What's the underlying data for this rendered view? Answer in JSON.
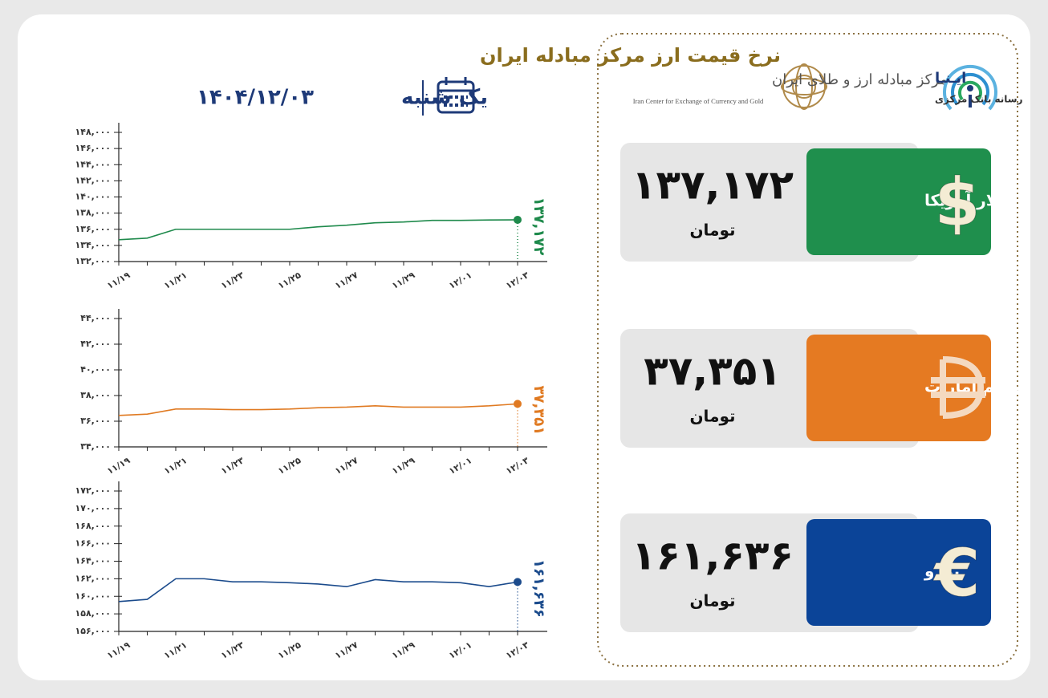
{
  "header": {
    "title": "نرخ قیمت ارز مرکز مبادله ایران",
    "day": "یک شنبه",
    "date": "۱۴۰۴/۱۲/۰۳"
  },
  "logos": {
    "center_fa": "مرکز مبادله ارز و طلای ایران",
    "center_en": "Iran Center for Exchange of Currency and Gold",
    "ina": "ایـنـا",
    "ina_sub": "رسانه بانک مرکزی"
  },
  "cards": [
    {
      "name": "دلار آمریکا",
      "value": "۱۳۷,۱۷۲",
      "unit": "تومان",
      "symbol": "$"
    },
    {
      "name": "درهم امارات",
      "value": "۳۷,۳۵۱",
      "unit": "تومان"
    },
    {
      "name": "یورو",
      "value": "۱۶۱,۶۳۶",
      "unit": "تومان",
      "symbol": "€"
    }
  ],
  "chart_data": [
    {
      "type": "line",
      "color": "#1f8a4c",
      "categories": [
        "۱۱/۱۹",
        null,
        "۱۱/۲۱",
        null,
        "۱۱/۲۳",
        null,
        "۱۱/۲۵",
        null,
        "۱۱/۲۷",
        null,
        "۱۱/۲۹",
        null,
        "۱۲/۰۱",
        null,
        "۱۲/۰۳"
      ],
      "values": [
        134700,
        134900,
        136000,
        136000,
        136000,
        136000,
        136000,
        136300,
        136500,
        136800,
        136900,
        137100,
        137100,
        137150,
        137172
      ],
      "value_labels": [
        null,
        null,
        null,
        null,
        null,
        null,
        null,
        null,
        null,
        null,
        null,
        null,
        null,
        null,
        "۱۳۷,۱۷۲"
      ],
      "ylim": [
        132000,
        148000
      ],
      "yticks": [
        {
          "value": 132000,
          "label": "۱۳۲,۰۰۰"
        },
        {
          "value": 134000,
          "label": "۱۳۴,۰۰۰"
        },
        {
          "value": 136000,
          "label": "۱۳۶,۰۰۰"
        },
        {
          "value": 138000,
          "label": "۱۳۸,۰۰۰"
        },
        {
          "value": 140000,
          "label": "۱۴۰,۰۰۰"
        },
        {
          "value": 142000,
          "label": "۱۴۲,۰۰۰"
        },
        {
          "value": 144000,
          "label": "۱۴۴,۰۰۰"
        },
        {
          "value": 146000,
          "label": "۱۴۶,۰۰۰"
        },
        {
          "value": 148000,
          "label": "۱۴۸,۰۰۰"
        }
      ]
    },
    {
      "type": "line",
      "color": "#e07a22",
      "categories": [
        "۱۱/۱۹",
        null,
        "۱۱/۲۱",
        null,
        "۱۱/۲۳",
        null,
        "۱۱/۲۵",
        null,
        "۱۱/۲۷",
        null,
        "۱۱/۲۹",
        null,
        "۱۲/۰۱",
        null,
        "۱۲/۰۳"
      ],
      "values": [
        36450,
        36550,
        36950,
        36950,
        36900,
        36900,
        36950,
        37050,
        37100,
        37200,
        37100,
        37100,
        37100,
        37200,
        37351
      ],
      "value_labels": [
        null,
        null,
        null,
        null,
        null,
        null,
        null,
        null,
        null,
        null,
        null,
        null,
        null,
        null,
        "۳۷,۳۵۱"
      ],
      "ylim": [
        34000,
        44000
      ],
      "yticks": [
        {
          "value": 34000,
          "label": "۳۴,۰۰۰"
        },
        {
          "value": 36000,
          "label": "۳۶,۰۰۰"
        },
        {
          "value": 38000,
          "label": "۳۸,۰۰۰"
        },
        {
          "value": 40000,
          "label": "۴۰,۰۰۰"
        },
        {
          "value": 42000,
          "label": "۴۲,۰۰۰"
        },
        {
          "value": 44000,
          "label": "۴۴,۰۰۰"
        }
      ]
    },
    {
      "type": "line",
      "color": "#1b4b8c",
      "categories": [
        "۱۱/۱۹",
        null,
        "۱۱/۲۱",
        null,
        "۱۱/۲۳",
        null,
        "۱۱/۲۵",
        null,
        "۱۱/۲۷",
        null,
        "۱۱/۲۹",
        null,
        "۱۲/۰۱",
        null,
        "۱۲/۰۳"
      ],
      "values": [
        159400,
        159650,
        162000,
        162000,
        161650,
        161650,
        161550,
        161400,
        161100,
        161900,
        161650,
        161650,
        161550,
        161100,
        161636
      ],
      "value_labels": [
        null,
        null,
        null,
        null,
        null,
        null,
        null,
        null,
        null,
        null,
        null,
        null,
        null,
        null,
        "۱۶۱,۶۳۶"
      ],
      "ylim": [
        156000,
        172000
      ],
      "yticks": [
        {
          "value": 156000,
          "label": "۱۵۶,۰۰۰"
        },
        {
          "value": 158000,
          "label": "۱۵۸,۰۰۰"
        },
        {
          "value": 160000,
          "label": "۱۶۰,۰۰۰"
        },
        {
          "value": 162000,
          "label": "۱۶۲,۰۰۰"
        },
        {
          "value": 164000,
          "label": "۱۶۴,۰۰۰"
        },
        {
          "value": 166000,
          "label": "۱۶۶,۰۰۰"
        },
        {
          "value": 168000,
          "label": "۱۶۸,۰۰۰"
        },
        {
          "value": 170000,
          "label": "۱۷۰,۰۰۰"
        },
        {
          "value": 172000,
          "label": "۱۷۲,۰۰۰"
        }
      ]
    }
  ]
}
